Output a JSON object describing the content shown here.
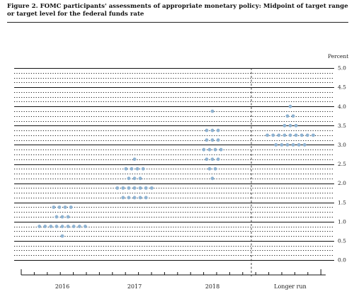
{
  "title": "Figure 2.  FOMC participants' assessments of appropriate monetary policy:  Midpoint of target range or target level for the federal funds rate",
  "chart_data": {
    "type": "scatter",
    "title": "Figure 2.  FOMC participants' assessments of appropriate monetary policy:  Midpoint of target range or target level for the federal funds rate",
    "unit_label": "Percent",
    "categories": [
      "2016",
      "2017",
      "2018",
      "Longer run"
    ],
    "ylim": [
      0,
      5.0
    ],
    "yticks": [
      "5.0",
      "4.5",
      "4.0",
      "3.5",
      "3.0",
      "2.5",
      "2.0",
      "1.5",
      "1.0",
      "0.5",
      "0.0"
    ],
    "grid": "solid lines at whole and half percents, dotted lines at eighths",
    "dot_color": "#8fb3d2",
    "dots": [
      {
        "category": "2016",
        "y": 1.375,
        "count": 4
      },
      {
        "category": "2016",
        "y": 1.125,
        "count": 3
      },
      {
        "category": "2016",
        "y": 0.875,
        "count": 9
      },
      {
        "category": "2016",
        "y": 0.625,
        "count": 1
      },
      {
        "category": "2017",
        "y": 2.625,
        "count": 1
      },
      {
        "category": "2017",
        "y": 2.375,
        "count": 4
      },
      {
        "category": "2017",
        "y": 2.125,
        "count": 3
      },
      {
        "category": "2017",
        "y": 1.875,
        "count": 7
      },
      {
        "category": "2017",
        "y": 1.625,
        "count": 5
      },
      {
        "category": "2018",
        "y": 3.875,
        "count": 1
      },
      {
        "category": "2018",
        "y": 3.375,
        "count": 3
      },
      {
        "category": "2018",
        "y": 3.125,
        "count": 3
      },
      {
        "category": "2018",
        "y": 2.875,
        "count": 4
      },
      {
        "category": "2018",
        "y": 2.625,
        "count": 3
      },
      {
        "category": "2018",
        "y": 2.375,
        "count": 2
      },
      {
        "category": "2018",
        "y": 2.125,
        "count": 1
      },
      {
        "category": "Longer run",
        "y": 4.0,
        "count": 1
      },
      {
        "category": "Longer run",
        "y": 3.75,
        "count": 2
      },
      {
        "category": "Longer run",
        "y": 3.5,
        "count": 3
      },
      {
        "category": "Longer run",
        "y": 3.25,
        "count": 9
      },
      {
        "category": "Longer run",
        "y": 3.0,
        "count": 6
      }
    ]
  }
}
